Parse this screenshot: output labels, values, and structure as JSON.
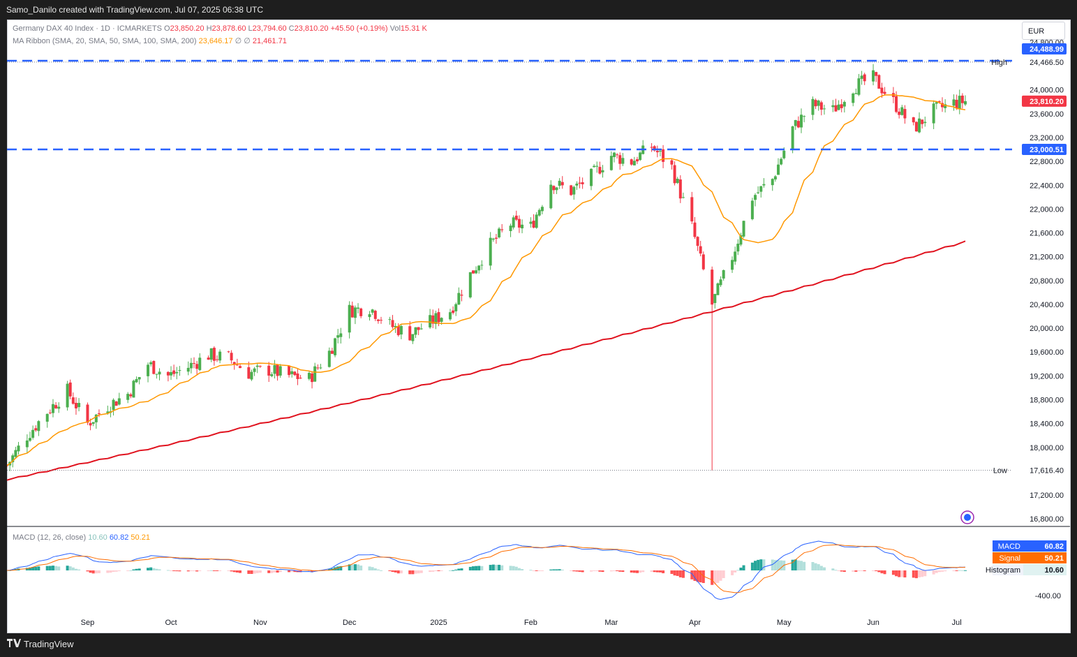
{
  "header": {
    "attribution": "Samo_Danilo created with TradingView.com, Jul 07, 2025 06:38 UTC"
  },
  "legend": {
    "symbol": "Germany DAX 40 Index · 1D · ICMARKETS",
    "open_label": "O",
    "open": "23,850.20",
    "high_label": "H",
    "high": "23,878.60",
    "low_label": "L",
    "low": "23,794.60",
    "close_label": "C",
    "close": "23,810.20",
    "change": "+45.50 (+0.19%)",
    "vol_label": "Vol",
    "vol": "15.31 K",
    "ma_label": "MA Ribbon (SMA, 20, SMA, 50, SMA, 100, SMA, 200)",
    "ma_value1": "23,646.17",
    "ma_sep1": "∅",
    "ma_sep2": "∅",
    "ma_value2": "21,461.71"
  },
  "currency": "EUR",
  "price_axis": {
    "ticks": [
      "24,800.00",
      "24,000.00",
      "23,600.00",
      "23,200.00",
      "22,800.00",
      "22,400.00",
      "22,000.00",
      "21,600.00",
      "21,200.00",
      "20,800.00",
      "20,400.00",
      "20,000.00",
      "19,600.00",
      "19,200.00",
      "18,800.00",
      "18,400.00",
      "18,000.00",
      "17,200.00",
      "16,800.00"
    ],
    "high_tag": "24,488.99",
    "high_label": "High",
    "high_value": "24,466.50",
    "last_price": "23,810.20",
    "support_tag": "23,000.51",
    "low_label": "Low",
    "low_value": "17,616.40"
  },
  "macd": {
    "label": "MACD (12, 26, close)",
    "hist_value": "10.60",
    "macd_value": "60.82",
    "signal_value": "50.21",
    "tags": [
      {
        "label": "MACD",
        "value": "60.82"
      },
      {
        "label": "Signal",
        "value": "50.21"
      },
      {
        "label": "Histogram",
        "value": "10.60"
      }
    ],
    "axis_tick": "-400.00"
  },
  "time_axis": [
    "Sep",
    "Oct",
    "Nov",
    "Dec",
    "2025",
    "Feb",
    "Mar",
    "Apr",
    "May",
    "Jun",
    "Jul"
  ],
  "footer": {
    "brand": "TradingView"
  },
  "colors": {
    "up": "#4caf50",
    "down": "#f23645",
    "sma20": "#ff9800",
    "sma200": "#e0121e",
    "level_line": "#2962ff",
    "macd": "#2962ff",
    "signal": "#ff6d00"
  },
  "chart_data": {
    "type": "candlestick",
    "symbol": "Germany DAX 40 Index",
    "interval": "1D",
    "ylim": [
      16800,
      24900
    ],
    "x_range": [
      "Aug 2024",
      "Jul 2025"
    ],
    "horizontal_levels": [
      24488.99,
      23000.51
    ],
    "high": 24466.5,
    "low": 17616.4,
    "last": 23810.2,
    "close_path": [
      [
        "2024-08-05",
        17700
      ],
      [
        "2024-08-12",
        18200
      ],
      [
        "2024-08-19",
        18600
      ],
      [
        "2024-08-26",
        18950
      ],
      [
        "2024-09-02",
        18400
      ],
      [
        "2024-09-09",
        18700
      ],
      [
        "2024-09-16",
        18900
      ],
      [
        "2024-09-23",
        19400
      ],
      [
        "2024-09-30",
        19200
      ],
      [
        "2024-10-07",
        19350
      ],
      [
        "2024-10-14",
        19550
      ],
      [
        "2024-10-21",
        19500
      ],
      [
        "2024-10-28",
        19250
      ],
      [
        "2024-11-04",
        19300
      ],
      [
        "2024-11-11",
        19200
      ],
      [
        "2024-11-18",
        19150
      ],
      [
        "2024-11-25",
        19600
      ],
      [
        "2024-12-02",
        20300
      ],
      [
        "2024-12-09",
        20350
      ],
      [
        "2024-12-16",
        20050
      ],
      [
        "2024-12-23",
        19900
      ],
      [
        "2024-12-30",
        20100
      ],
      [
        "2025-01-06",
        20300
      ],
      [
        "2025-01-13",
        20900
      ],
      [
        "2025-01-20",
        21400
      ],
      [
        "2025-01-27",
        21750
      ],
      [
        "2025-02-03",
        21700
      ],
      [
        "2025-02-10",
        22450
      ],
      [
        "2025-02-17",
        22300
      ],
      [
        "2025-02-24",
        22550
      ],
      [
        "2025-03-03",
        22900
      ],
      [
        "2025-03-10",
        22800
      ],
      [
        "2025-03-17",
        23050
      ],
      [
        "2025-03-24",
        22700
      ],
      [
        "2025-03-31",
        21700
      ],
      [
        "2025-04-07",
        20400
      ],
      [
        "2025-04-14",
        21200
      ],
      [
        "2025-04-21",
        22200
      ],
      [
        "2025-04-28",
        22500
      ],
      [
        "2025-05-05",
        23350
      ],
      [
        "2025-05-12",
        23750
      ],
      [
        "2025-05-19",
        23650
      ],
      [
        "2025-05-26",
        24050
      ],
      [
        "2025-06-02",
        24200
      ],
      [
        "2025-06-09",
        23800
      ],
      [
        "2025-06-16",
        23350
      ],
      [
        "2025-06-23",
        23650
      ],
      [
        "2025-06-30",
        23780
      ],
      [
        "2025-07-04",
        23810
      ]
    ],
    "series": [
      {
        "name": "SMA 20",
        "last": 23646.17
      },
      {
        "name": "SMA 200",
        "last": 21461.71
      }
    ],
    "macd": {
      "macd": 60.82,
      "signal": 50.21,
      "histogram": 10.6
    }
  }
}
